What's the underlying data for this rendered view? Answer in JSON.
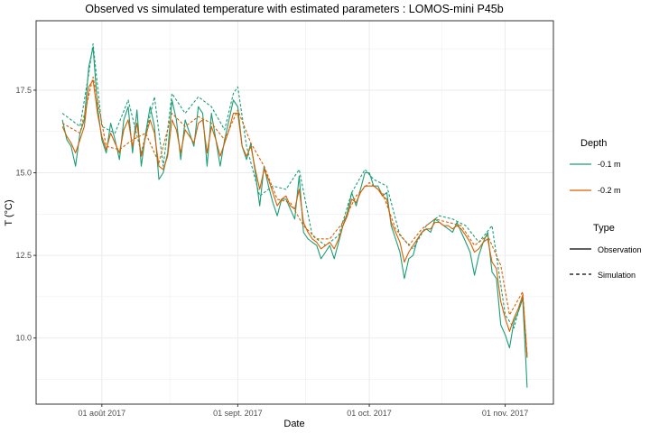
{
  "chart_data": {
    "type": "line",
    "title": "Observed vs simulated temperature with estimated parameters : LOMOS-mini P45b",
    "xlabel": "Date",
    "ylabel": "T (°C)",
    "x_range": [
      "2017-07-17",
      "2017-11-12"
    ],
    "ylim": [
      8.0,
      19.6
    ],
    "x_ticks": [
      {
        "date": "2017-08-01",
        "label": "01 août 2017"
      },
      {
        "date": "2017-09-01",
        "label": "01 sept. 2017"
      },
      {
        "date": "2017-10-01",
        "label": "01 oct. 2017"
      },
      {
        "date": "2017-11-01",
        "label": "01 nov. 2017"
      }
    ],
    "y_ticks": [
      {
        "value": 10.0,
        "label": "10.0"
      },
      {
        "value": 12.5,
        "label": "12.5"
      },
      {
        "value": 15.0,
        "label": "15.0"
      },
      {
        "value": 17.5,
        "label": "17.5"
      }
    ],
    "grid": true,
    "legend_position": "right",
    "legend": {
      "depth_title": "Depth",
      "depth_items": [
        {
          "label": "-0.1 m",
          "color": "#1b9e77"
        },
        {
          "label": "-0.2 m",
          "color": "#d95f02"
        }
      ],
      "type_title": "Type",
      "type_items": [
        {
          "label": "Observation",
          "dash": "solid"
        },
        {
          "label": "Simulation",
          "dash": "dashed"
        }
      ]
    },
    "series": [
      {
        "depth": "-0.1 m",
        "type": "Observation",
        "color": "#1b9e77",
        "x": [
          "2017-07-23",
          "2017-07-24",
          "2017-07-25",
          "2017-07-26",
          "2017-07-27",
          "2017-07-28",
          "2017-07-29",
          "2017-07-30",
          "2017-07-31",
          "2017-08-01",
          "2017-08-02",
          "2017-08-03",
          "2017-08-04",
          "2017-08-05",
          "2017-08-06",
          "2017-08-07",
          "2017-08-08",
          "2017-08-09",
          "2017-08-10",
          "2017-08-11",
          "2017-08-12",
          "2017-08-13",
          "2017-08-14",
          "2017-08-15",
          "2017-08-16",
          "2017-08-17",
          "2017-08-18",
          "2017-08-19",
          "2017-08-20",
          "2017-08-21",
          "2017-08-22",
          "2017-08-23",
          "2017-08-24",
          "2017-08-25",
          "2017-08-26",
          "2017-08-27",
          "2017-08-28",
          "2017-08-29",
          "2017-08-30",
          "2017-08-31",
          "2017-09-01",
          "2017-09-02",
          "2017-09-03",
          "2017-09-04",
          "2017-09-05",
          "2017-09-06",
          "2017-09-07",
          "2017-09-08",
          "2017-09-09",
          "2017-09-10",
          "2017-09-11",
          "2017-09-12",
          "2017-09-13",
          "2017-09-14",
          "2017-09-15",
          "2017-09-16",
          "2017-09-17",
          "2017-09-18",
          "2017-09-19",
          "2017-09-20",
          "2017-09-21",
          "2017-09-22",
          "2017-09-23",
          "2017-09-24",
          "2017-09-25",
          "2017-09-26",
          "2017-09-27",
          "2017-09-28",
          "2017-09-29",
          "2017-09-30",
          "2017-10-01",
          "2017-10-02",
          "2017-10-03",
          "2017-10-04",
          "2017-10-05",
          "2017-10-06",
          "2017-10-07",
          "2017-10-08",
          "2017-10-09",
          "2017-10-10",
          "2017-10-11",
          "2017-10-12",
          "2017-10-13",
          "2017-10-14",
          "2017-10-15",
          "2017-10-16",
          "2017-10-17",
          "2017-10-18",
          "2017-10-19",
          "2017-10-20",
          "2017-10-21",
          "2017-10-22",
          "2017-10-23",
          "2017-10-24",
          "2017-10-25",
          "2017-10-26",
          "2017-10-27",
          "2017-10-28",
          "2017-10-29",
          "2017-10-30",
          "2017-10-31",
          "2017-11-01",
          "2017-11-02",
          "2017-11-03",
          "2017-11-04",
          "2017-11-05",
          "2017-11-06"
        ],
        "y": [
          16.6,
          16.0,
          15.8,
          15.2,
          16.2,
          16.6,
          18.2,
          18.8,
          17.0,
          16.0,
          15.6,
          16.5,
          16.0,
          15.4,
          16.6,
          17.0,
          15.6,
          16.9,
          15.2,
          16.2,
          17.0,
          16.4,
          14.8,
          15.0,
          15.6,
          17.2,
          16.6,
          15.4,
          16.6,
          16.2,
          15.8,
          17.0,
          16.8,
          15.2,
          16.8,
          16.0,
          15.2,
          16.0,
          16.6,
          17.2,
          17.0,
          15.8,
          15.4,
          15.9,
          15.0,
          14.0,
          15.2,
          14.6,
          14.1,
          13.7,
          14.2,
          14.2,
          13.9,
          13.6,
          14.9,
          13.2,
          13.0,
          12.9,
          12.8,
          12.4,
          12.6,
          12.8,
          12.4,
          12.9,
          13.4,
          13.8,
          14.4,
          14.0,
          14.5,
          15.0,
          15.0,
          14.6,
          14.6,
          14.3,
          14.4,
          13.4,
          13.0,
          12.6,
          11.8,
          12.4,
          12.5,
          13.0,
          13.2,
          13.3,
          13.2,
          13.6,
          13.5,
          13.4,
          13.3,
          13.2,
          13.5,
          13.2,
          12.9,
          12.6,
          11.9,
          12.5,
          12.9,
          13.2,
          12.0,
          11.8,
          10.4,
          10.1,
          9.7,
          10.5,
          10.8,
          11.2,
          8.5
        ]
      },
      {
        "depth": "-0.1 m",
        "type": "Simulation",
        "color": "#1b9e77",
        "x": [
          "2017-07-23",
          "2017-07-27",
          "2017-07-29",
          "2017-07-30",
          "2017-08-01",
          "2017-08-04",
          "2017-08-07",
          "2017-08-10",
          "2017-08-13",
          "2017-08-15",
          "2017-08-17",
          "2017-08-20",
          "2017-08-23",
          "2017-08-26",
          "2017-08-29",
          "2017-08-31",
          "2017-09-01",
          "2017-09-03",
          "2017-09-06",
          "2017-09-09",
          "2017-09-12",
          "2017-09-15",
          "2017-09-18",
          "2017-09-21",
          "2017-09-24",
          "2017-09-27",
          "2017-09-30",
          "2017-10-02",
          "2017-10-05",
          "2017-10-08",
          "2017-10-11",
          "2017-10-14",
          "2017-10-17",
          "2017-10-20",
          "2017-10-23",
          "2017-10-26",
          "2017-10-29",
          "2017-11-01",
          "2017-11-03",
          "2017-11-05",
          "2017-11-06"
        ],
        "y": [
          16.8,
          16.4,
          18.0,
          18.9,
          16.4,
          16.2,
          17.2,
          15.6,
          17.3,
          15.2,
          17.4,
          16.8,
          17.3,
          17.0,
          16.3,
          17.4,
          17.6,
          15.8,
          14.3,
          14.6,
          14.5,
          15.1,
          13.1,
          12.8,
          13.1,
          14.4,
          15.1,
          14.8,
          14.6,
          13.1,
          12.7,
          13.4,
          13.7,
          13.6,
          13.4,
          12.9,
          13.4,
          10.7,
          10.3,
          11.3,
          9.4
        ]
      },
      {
        "depth": "-0.2 m",
        "type": "Observation",
        "color": "#d95f02",
        "x": [
          "2017-07-23",
          "2017-07-24",
          "2017-07-25",
          "2017-07-26",
          "2017-07-27",
          "2017-07-28",
          "2017-07-29",
          "2017-07-30",
          "2017-07-31",
          "2017-08-01",
          "2017-08-02",
          "2017-08-03",
          "2017-08-04",
          "2017-08-05",
          "2017-08-06",
          "2017-08-07",
          "2017-08-08",
          "2017-08-09",
          "2017-08-10",
          "2017-08-11",
          "2017-08-12",
          "2017-08-13",
          "2017-08-14",
          "2017-08-15",
          "2017-08-16",
          "2017-08-17",
          "2017-08-18",
          "2017-08-19",
          "2017-08-20",
          "2017-08-21",
          "2017-08-22",
          "2017-08-23",
          "2017-08-24",
          "2017-08-25",
          "2017-08-26",
          "2017-08-27",
          "2017-08-28",
          "2017-08-29",
          "2017-08-30",
          "2017-08-31",
          "2017-09-01",
          "2017-09-02",
          "2017-09-03",
          "2017-09-04",
          "2017-09-05",
          "2017-09-06",
          "2017-09-07",
          "2017-09-08",
          "2017-09-09",
          "2017-09-10",
          "2017-09-11",
          "2017-09-12",
          "2017-09-13",
          "2017-09-14",
          "2017-09-15",
          "2017-09-16",
          "2017-09-17",
          "2017-09-18",
          "2017-09-19",
          "2017-09-20",
          "2017-09-21",
          "2017-09-22",
          "2017-09-23",
          "2017-09-24",
          "2017-09-25",
          "2017-09-26",
          "2017-09-27",
          "2017-09-28",
          "2017-09-29",
          "2017-09-30",
          "2017-10-01",
          "2017-10-02",
          "2017-10-03",
          "2017-10-04",
          "2017-10-05",
          "2017-10-06",
          "2017-10-07",
          "2017-10-08",
          "2017-10-09",
          "2017-10-10",
          "2017-10-11",
          "2017-10-12",
          "2017-10-13",
          "2017-10-14",
          "2017-10-15",
          "2017-10-16",
          "2017-10-17",
          "2017-10-18",
          "2017-10-19",
          "2017-10-20",
          "2017-10-21",
          "2017-10-22",
          "2017-10-23",
          "2017-10-24",
          "2017-10-25",
          "2017-10-26",
          "2017-10-27",
          "2017-10-28",
          "2017-10-29",
          "2017-10-30",
          "2017-10-31",
          "2017-11-01",
          "2017-11-02",
          "2017-11-03",
          "2017-11-04",
          "2017-11-05",
          "2017-11-06"
        ],
        "y": [
          16.4,
          16.1,
          15.9,
          15.6,
          16.0,
          16.4,
          17.6,
          17.8,
          16.8,
          16.1,
          15.7,
          16.2,
          15.9,
          15.6,
          16.3,
          16.6,
          15.8,
          16.5,
          15.5,
          16.1,
          16.6,
          16.2,
          15.2,
          15.1,
          15.5,
          16.6,
          16.3,
          15.6,
          16.3,
          16.1,
          15.9,
          16.5,
          16.6,
          15.6,
          16.4,
          16.0,
          15.5,
          15.9,
          16.3,
          16.8,
          16.8,
          15.8,
          15.5,
          15.8,
          15.1,
          14.5,
          15.1,
          14.8,
          14.4,
          14.0,
          14.2,
          14.3,
          14.0,
          13.9,
          14.5,
          13.5,
          13.2,
          13.0,
          12.9,
          12.7,
          12.8,
          12.9,
          12.7,
          13.0,
          13.4,
          13.7,
          14.2,
          14.1,
          14.4,
          14.6,
          14.6,
          14.6,
          14.5,
          14.3,
          14.2,
          13.5,
          13.2,
          12.9,
          12.3,
          12.6,
          12.8,
          13.0,
          13.2,
          13.3,
          13.3,
          13.5,
          13.5,
          13.4,
          13.4,
          13.3,
          13.4,
          13.3,
          13.1,
          12.9,
          12.6,
          12.7,
          12.9,
          13.0,
          12.3,
          12.1,
          11.1,
          10.6,
          10.2,
          10.6,
          10.9,
          11.3,
          9.4
        ]
      },
      {
        "depth": "-0.2 m",
        "type": "Simulation",
        "color": "#d95f02",
        "x": [
          "2017-07-23",
          "2017-07-27",
          "2017-07-30",
          "2017-08-02",
          "2017-08-05",
          "2017-08-08",
          "2017-08-11",
          "2017-08-14",
          "2017-08-17",
          "2017-08-20",
          "2017-08-23",
          "2017-08-26",
          "2017-08-29",
          "2017-09-01",
          "2017-09-04",
          "2017-09-07",
          "2017-09-10",
          "2017-09-13",
          "2017-09-16",
          "2017-09-19",
          "2017-09-22",
          "2017-09-25",
          "2017-09-28",
          "2017-10-01",
          "2017-10-04",
          "2017-10-07",
          "2017-10-10",
          "2017-10-13",
          "2017-10-16",
          "2017-10-19",
          "2017-10-22",
          "2017-10-25",
          "2017-10-28",
          "2017-10-31",
          "2017-11-02",
          "2017-11-05",
          "2017-11-06"
        ],
        "y": [
          16.5,
          16.2,
          17.9,
          15.8,
          15.7,
          16.0,
          16.2,
          15.3,
          16.8,
          16.4,
          16.7,
          16.5,
          16.0,
          16.9,
          15.9,
          15.2,
          14.2,
          14.1,
          13.4,
          13.0,
          13.0,
          13.5,
          14.3,
          14.7,
          14.4,
          13.3,
          12.8,
          13.3,
          13.6,
          13.5,
          13.4,
          12.8,
          13.1,
          12.2,
          10.7,
          11.4,
          9.5
        ]
      }
    ]
  }
}
